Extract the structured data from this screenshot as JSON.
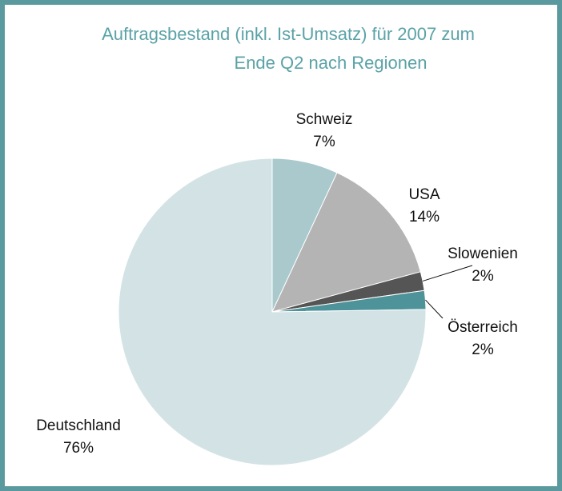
{
  "chart_data": {
    "type": "pie",
    "title": [
      "Auftragsbestand (inkl. Ist-Umsatz) für 2007 zum",
      "Ende Q2 nach Regionen"
    ],
    "categories": [
      "Schweiz",
      "USA",
      "Slowenien",
      "Österreich",
      "Deutschland"
    ],
    "values": [
      7,
      14,
      2,
      2,
      76
    ],
    "value_labels": [
      "7%",
      "14%",
      "2%",
      "2%",
      "76%"
    ],
    "colors": [
      "#a9c9cd",
      "#b4b4b4",
      "#555555",
      "#4e9399",
      "#d3e3e5"
    ]
  }
}
